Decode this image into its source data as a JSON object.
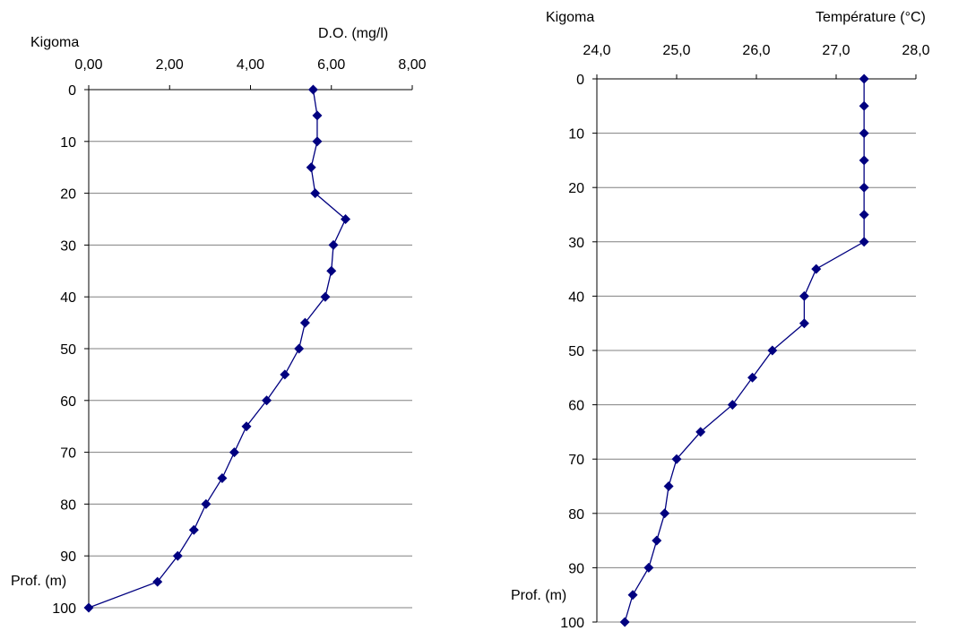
{
  "chart_data": [
    {
      "type": "line",
      "site_label": "Kigoma",
      "title": "D.O. (mg/l)",
      "ylabel": "Prof. (m)",
      "xlim": [
        0,
        8
      ],
      "ylim": [
        0,
        100
      ],
      "y_inverted": true,
      "x_axis_position": "top",
      "grid": "horizontal",
      "color": "#000080",
      "x_ticks": [
        "0,00",
        "2,00",
        "4,00",
        "6,00",
        "8,00"
      ],
      "x_tick_values": [
        0,
        2,
        4,
        6,
        8
      ],
      "y_ticks": [
        "0",
        "10",
        "20",
        "30",
        "40",
        "50",
        "60",
        "70",
        "80",
        "90",
        "100"
      ],
      "series": [
        {
          "x": [
            5.55,
            5.65,
            5.65,
            5.5,
            5.6,
            6.35,
            6.05,
            6.0,
            5.85,
            5.35,
            5.2,
            4.85,
            4.4,
            3.9,
            3.6,
            3.3,
            2.9,
            2.6,
            2.2,
            1.7,
            0.0
          ],
          "y": [
            0,
            5,
            10,
            15,
            20,
            25,
            30,
            35,
            40,
            45,
            50,
            55,
            60,
            65,
            70,
            75,
            80,
            85,
            90,
            95,
            100
          ]
        }
      ]
    },
    {
      "type": "line",
      "site_label": "Kigoma",
      "title": "Température (°C)",
      "ylabel": "Prof. (m)",
      "xlim": [
        24,
        28
      ],
      "ylim": [
        0,
        100
      ],
      "y_inverted": true,
      "x_axis_position": "top",
      "grid": "horizontal",
      "color": "#000080",
      "x_ticks": [
        "24,0",
        "25,0",
        "26,0",
        "27,0",
        "28,0"
      ],
      "x_tick_values": [
        24,
        25,
        26,
        27,
        28
      ],
      "y_ticks": [
        "0",
        "10",
        "20",
        "30",
        "40",
        "50",
        "60",
        "70",
        "80",
        "90",
        "100"
      ],
      "series": [
        {
          "x": [
            27.35,
            27.35,
            27.35,
            27.35,
            27.35,
            27.35,
            27.35,
            26.75,
            26.6,
            26.6,
            26.2,
            25.95,
            25.7,
            25.3,
            25.0,
            24.9,
            24.85,
            24.75,
            24.65,
            24.45,
            24.35
          ],
          "y": [
            0,
            5,
            10,
            15,
            20,
            25,
            30,
            35,
            40,
            45,
            50,
            55,
            60,
            65,
            70,
            75,
            80,
            85,
            90,
            95,
            100
          ]
        }
      ]
    }
  ]
}
